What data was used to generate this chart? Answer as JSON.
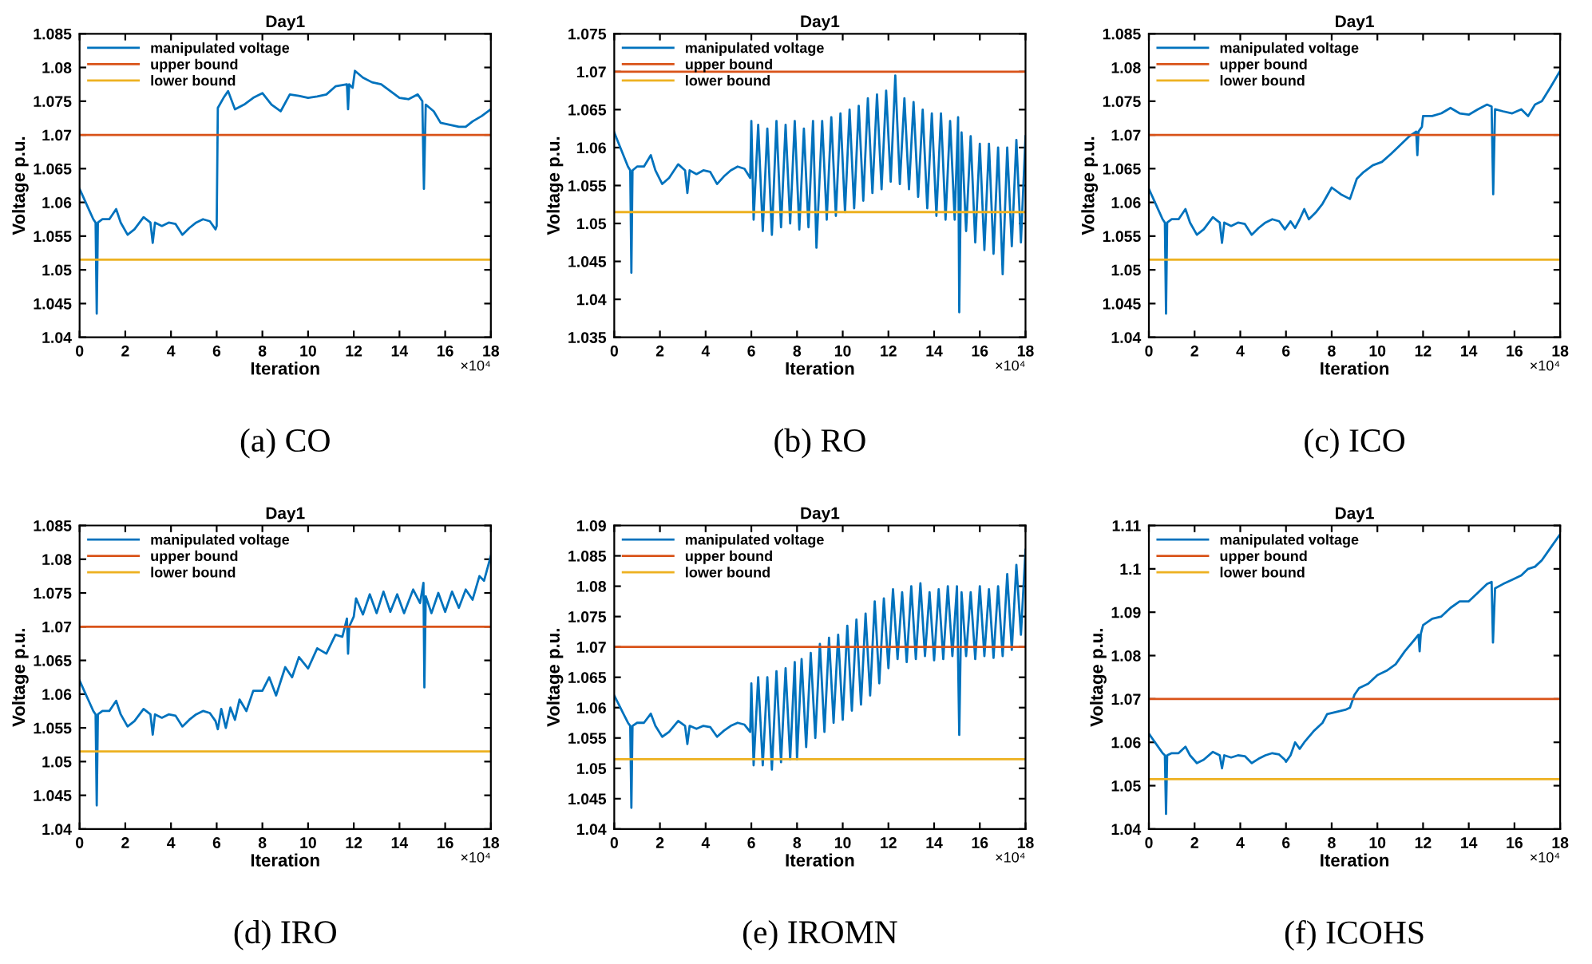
{
  "chart_data": [
    {
      "type": "line",
      "title": "Day1",
      "xlabel": "Iteration",
      "ylabel": "Voltage p.u.",
      "legend": "top left",
      "grid": false,
      "xlim": [
        0,
        18
      ],
      "xticks": [
        0,
        2,
        4,
        6,
        8,
        10,
        12,
        14,
        16,
        18
      ],
      "ylim": [
        1.04,
        1.085
      ],
      "yticks": [
        1.04,
        1.045,
        1.05,
        1.055,
        1.06,
        1.065,
        1.07,
        1.075,
        1.08,
        1.085
      ],
      "annotations": [
        "×10⁴",
        "(a) CO"
      ],
      "series": [
        {
          "name": "manipulated voltage",
          "color": "#0072bd",
          "x": [
            0,
            0.2,
            0.4,
            0.6,
            0.7,
            0.75,
            0.8,
            1.0,
            1.3,
            1.6,
            1.8,
            2.1,
            2.4,
            2.8,
            3.1,
            3.2,
            3.3,
            3.6,
            3.9,
            4.2,
            4.5,
            4.8,
            5.1,
            5.4,
            5.7,
            5.95,
            6.0,
            6.05,
            6.3,
            6.5,
            6.8,
            7.2,
            7.6,
            8.0,
            8.4,
            8.8,
            9.2,
            9.6,
            10.0,
            10.4,
            10.8,
            11.2,
            11.7,
            11.75,
            11.8,
            11.95,
            12.05,
            12.4,
            12.8,
            13.2,
            13.6,
            14.0,
            14.4,
            14.8,
            15.0,
            15.07,
            15.15,
            15.5,
            15.8,
            16.2,
            16.6,
            16.9,
            17.2,
            17.6,
            18.0
          ],
          "values": [
            1.062,
            1.0605,
            1.059,
            1.0575,
            1.057,
            1.0435,
            1.057,
            1.0575,
            1.0575,
            1.059,
            1.057,
            1.0552,
            1.056,
            1.0578,
            1.057,
            1.054,
            1.057,
            1.0565,
            1.057,
            1.0568,
            1.0552,
            1.0562,
            1.057,
            1.0575,
            1.0572,
            1.056,
            1.0565,
            1.074,
            1.0755,
            1.0765,
            1.0738,
            1.0745,
            1.0755,
            1.0762,
            1.0745,
            1.0735,
            1.076,
            1.0758,
            1.0755,
            1.0757,
            1.076,
            1.0772,
            1.0775,
            1.0738,
            1.0775,
            1.077,
            1.0795,
            1.0785,
            1.0778,
            1.0775,
            1.0765,
            1.0755,
            1.0753,
            1.076,
            1.075,
            1.062,
            1.0745,
            1.0735,
            1.0718,
            1.0715,
            1.0712,
            1.0712,
            1.072,
            1.0728,
            1.0738
          ]
        },
        {
          "name": "upper bound",
          "color": "#d95319",
          "x": [
            0,
            18
          ],
          "values": [
            1.07,
            1.07
          ]
        },
        {
          "name": "lower bound",
          "color": "#edb120",
          "x": [
            0,
            18
          ],
          "values": [
            1.0515,
            1.0515
          ]
        }
      ]
    },
    {
      "type": "line",
      "title": "Day1",
      "xlabel": "Iteration",
      "ylabel": "Voltage p.u.",
      "legend": "top left",
      "grid": false,
      "xlim": [
        0,
        18
      ],
      "xticks": [
        0,
        2,
        4,
        6,
        8,
        10,
        12,
        14,
        16,
        18
      ],
      "ylim": [
        1.035,
        1.075
      ],
      "yticks": [
        1.035,
        1.04,
        1.045,
        1.05,
        1.055,
        1.06,
        1.065,
        1.07,
        1.075
      ],
      "annotations": [
        "×10⁴",
        "(b) RO"
      ],
      "series": [
        {
          "name": "manipulated voltage",
          "color": "#0072bd",
          "x": [
            0,
            0.2,
            0.4,
            0.6,
            0.7,
            0.75,
            0.8,
            1.0,
            1.3,
            1.6,
            1.8,
            2.1,
            2.4,
            2.8,
            3.1,
            3.2,
            3.3,
            3.6,
            3.9,
            4.2,
            4.5,
            4.8,
            5.1,
            5.4,
            5.7,
            5.95,
            6.0,
            6.1,
            6.3,
            6.5,
            6.7,
            6.9,
            7.1,
            7.3,
            7.5,
            7.7,
            7.9,
            8.1,
            8.3,
            8.5,
            8.7,
            8.85,
            9.1,
            9.3,
            9.5,
            9.7,
            9.9,
            10.1,
            10.3,
            10.5,
            10.7,
            10.9,
            11.1,
            11.3,
            11.5,
            11.7,
            11.9,
            12.1,
            12.3,
            12.5,
            12.7,
            12.9,
            13.1,
            13.3,
            13.5,
            13.7,
            13.9,
            14.1,
            14.3,
            14.5,
            14.7,
            14.9,
            15.05,
            15.1,
            15.2,
            15.4,
            15.6,
            15.8,
            16.0,
            16.2,
            16.4,
            16.6,
            16.8,
            17.0,
            17.2,
            17.4,
            17.6,
            17.8,
            18.0
          ],
          "values": [
            1.062,
            1.0605,
            1.059,
            1.0575,
            1.057,
            1.0435,
            1.057,
            1.0575,
            1.0575,
            1.059,
            1.057,
            1.0552,
            1.056,
            1.0578,
            1.057,
            1.054,
            1.057,
            1.0565,
            1.057,
            1.0568,
            1.0552,
            1.0562,
            1.057,
            1.0575,
            1.0572,
            1.056,
            1.0635,
            1.0505,
            1.063,
            1.049,
            1.0625,
            1.0485,
            1.0635,
            1.0495,
            1.063,
            1.05,
            1.0635,
            1.0492,
            1.0625,
            1.0495,
            1.0635,
            1.0468,
            1.0635,
            1.0505,
            1.064,
            1.051,
            1.0645,
            1.0515,
            1.065,
            1.052,
            1.0655,
            1.053,
            1.0665,
            1.054,
            1.067,
            1.0545,
            1.0675,
            1.0555,
            1.0695,
            1.0552,
            1.0665,
            1.0545,
            1.066,
            1.0535,
            1.065,
            1.052,
            1.0645,
            1.051,
            1.0645,
            1.0505,
            1.0635,
            1.0505,
            1.064,
            1.0383,
            1.062,
            1.049,
            1.0615,
            1.0475,
            1.0605,
            1.0465,
            1.0605,
            1.046,
            1.06,
            1.0433,
            1.06,
            1.047,
            1.061,
            1.0475,
            1.0615
          ]
        },
        {
          "name": "upper bound",
          "color": "#d95319",
          "x": [
            0,
            18
          ],
          "values": [
            1.07,
            1.07
          ]
        },
        {
          "name": "lower bound",
          "color": "#edb120",
          "x": [
            0,
            18
          ],
          "values": [
            1.0515,
            1.0515
          ]
        }
      ]
    },
    {
      "type": "line",
      "title": "Day1",
      "xlabel": "Iteration",
      "ylabel": "Voltage p.u.",
      "legend": "top left",
      "grid": false,
      "xlim": [
        0,
        18
      ],
      "xticks": [
        0,
        2,
        4,
        6,
        8,
        10,
        12,
        14,
        16,
        18
      ],
      "ylim": [
        1.04,
        1.085
      ],
      "yticks": [
        1.04,
        1.045,
        1.05,
        1.055,
        1.06,
        1.065,
        1.07,
        1.075,
        1.08,
        1.085
      ],
      "annotations": [
        "×10⁴",
        "(c) ICO"
      ],
      "series": [
        {
          "name": "manipulated voltage",
          "color": "#0072bd",
          "x": [
            0,
            0.2,
            0.4,
            0.6,
            0.7,
            0.75,
            0.8,
            1.0,
            1.3,
            1.6,
            1.8,
            2.1,
            2.4,
            2.8,
            3.1,
            3.2,
            3.3,
            3.6,
            3.9,
            4.2,
            4.5,
            4.8,
            5.1,
            5.4,
            5.7,
            5.95,
            6.2,
            6.4,
            6.6,
            6.8,
            7.0,
            7.3,
            7.6,
            8.0,
            8.4,
            8.8,
            9.1,
            9.4,
            9.8,
            10.2,
            10.6,
            11.0,
            11.4,
            11.7,
            11.75,
            11.8,
            11.95,
            12.0,
            12.4,
            12.8,
            13.2,
            13.6,
            14.0,
            14.4,
            14.8,
            15.0,
            15.07,
            15.15,
            15.5,
            15.9,
            16.3,
            16.6,
            16.9,
            17.2,
            17.6,
            18.0
          ],
          "values": [
            1.062,
            1.0605,
            1.059,
            1.0575,
            1.057,
            1.0435,
            1.057,
            1.0575,
            1.0575,
            1.059,
            1.057,
            1.0552,
            1.056,
            1.0578,
            1.057,
            1.054,
            1.057,
            1.0565,
            1.057,
            1.0568,
            1.0552,
            1.0562,
            1.057,
            1.0575,
            1.0572,
            1.056,
            1.0572,
            1.0562,
            1.0575,
            1.059,
            1.0575,
            1.0585,
            1.0598,
            1.0622,
            1.0612,
            1.0605,
            1.0635,
            1.0645,
            1.0655,
            1.066,
            1.0672,
            1.0685,
            1.0698,
            1.0705,
            1.067,
            1.0705,
            1.0712,
            1.0728,
            1.0728,
            1.0732,
            1.074,
            1.0732,
            1.073,
            1.0738,
            1.0745,
            1.0742,
            1.0612,
            1.0738,
            1.0735,
            1.0732,
            1.0738,
            1.0728,
            1.0745,
            1.075,
            1.0772,
            1.0795
          ]
        },
        {
          "name": "upper bound",
          "color": "#d95319",
          "x": [
            0,
            18
          ],
          "values": [
            1.07,
            1.07
          ]
        },
        {
          "name": "lower bound",
          "color": "#edb120",
          "x": [
            0,
            18
          ],
          "values": [
            1.0515,
            1.0515
          ]
        }
      ]
    },
    {
      "type": "line",
      "title": "Day1",
      "xlabel": "Iteration",
      "ylabel": "Voltage p.u.",
      "legend": "top left",
      "grid": false,
      "xlim": [
        0,
        18
      ],
      "xticks": [
        0,
        2,
        4,
        6,
        8,
        10,
        12,
        14,
        16,
        18
      ],
      "ylim": [
        1.04,
        1.085
      ],
      "yticks": [
        1.04,
        1.045,
        1.05,
        1.055,
        1.06,
        1.065,
        1.07,
        1.075,
        1.08,
        1.085
      ],
      "annotations": [
        "×10⁴",
        "(d) IRO"
      ],
      "series": [
        {
          "name": "manipulated voltage",
          "color": "#0072bd",
          "x": [
            0,
            0.2,
            0.4,
            0.6,
            0.7,
            0.75,
            0.8,
            1.0,
            1.3,
            1.6,
            1.8,
            2.1,
            2.4,
            2.8,
            3.1,
            3.2,
            3.3,
            3.6,
            3.9,
            4.2,
            4.5,
            4.8,
            5.1,
            5.4,
            5.7,
            5.95,
            6.05,
            6.2,
            6.4,
            6.6,
            6.8,
            7.0,
            7.3,
            7.6,
            8.0,
            8.3,
            8.6,
            9.0,
            9.3,
            9.6,
            10.0,
            10.4,
            10.8,
            11.2,
            11.5,
            11.7,
            11.75,
            11.8,
            12.0,
            12.1,
            12.4,
            12.7,
            13.0,
            13.3,
            13.6,
            13.9,
            14.2,
            14.6,
            14.9,
            15.05,
            15.09,
            15.15,
            15.4,
            15.7,
            16.0,
            16.3,
            16.6,
            16.9,
            17.2,
            17.5,
            17.7,
            18.0
          ],
          "values": [
            1.062,
            1.0605,
            1.059,
            1.0575,
            1.057,
            1.0435,
            1.057,
            1.0575,
            1.0575,
            1.059,
            1.057,
            1.0552,
            1.056,
            1.0578,
            1.057,
            1.054,
            1.057,
            1.0565,
            1.057,
            1.0568,
            1.0552,
            1.0562,
            1.057,
            1.0575,
            1.0572,
            1.056,
            1.0548,
            1.0578,
            1.055,
            1.058,
            1.0562,
            1.0592,
            1.0575,
            1.0605,
            1.0605,
            1.0625,
            1.0598,
            1.064,
            1.0625,
            1.0655,
            1.0638,
            1.0668,
            1.066,
            1.0688,
            1.0685,
            1.0712,
            1.066,
            1.07,
            1.0715,
            1.0742,
            1.0718,
            1.0748,
            1.072,
            1.0752,
            1.0722,
            1.0748,
            1.072,
            1.0755,
            1.0735,
            1.0765,
            1.061,
            1.0745,
            1.072,
            1.075,
            1.0722,
            1.0752,
            1.0728,
            1.0755,
            1.074,
            1.0775,
            1.0768,
            1.0805
          ]
        },
        {
          "name": "upper bound",
          "color": "#d95319",
          "x": [
            0,
            18
          ],
          "values": [
            1.07,
            1.07
          ]
        },
        {
          "name": "lower bound",
          "color": "#edb120",
          "x": [
            0,
            18
          ],
          "values": [
            1.0515,
            1.0515
          ]
        }
      ]
    },
    {
      "type": "line",
      "title": "Day1",
      "xlabel": "Iteration",
      "ylabel": "Voltage p.u.",
      "legend": "top left",
      "grid": false,
      "xlim": [
        0,
        18
      ],
      "xticks": [
        0,
        2,
        4,
        6,
        8,
        10,
        12,
        14,
        16,
        18
      ],
      "ylim": [
        1.04,
        1.09
      ],
      "yticks": [
        1.04,
        1.045,
        1.05,
        1.055,
        1.06,
        1.065,
        1.07,
        1.075,
        1.08,
        1.085,
        1.09
      ],
      "annotations": [
        "×10⁴",
        "(e) IROMN"
      ],
      "series": [
        {
          "name": "manipulated voltage",
          "color": "#0072bd",
          "x": [
            0,
            0.2,
            0.4,
            0.6,
            0.7,
            0.75,
            0.8,
            1.0,
            1.3,
            1.6,
            1.8,
            2.1,
            2.4,
            2.8,
            3.1,
            3.2,
            3.3,
            3.6,
            3.9,
            4.2,
            4.5,
            4.8,
            5.1,
            5.4,
            5.7,
            5.95,
            6.0,
            6.1,
            6.3,
            6.5,
            6.7,
            6.9,
            7.1,
            7.3,
            7.5,
            7.7,
            7.9,
            8.0,
            8.2,
            8.4,
            8.6,
            8.8,
            9.0,
            9.2,
            9.4,
            9.6,
            9.8,
            10.0,
            10.2,
            10.4,
            10.6,
            10.8,
            11.0,
            11.2,
            11.4,
            11.6,
            11.8,
            12.0,
            12.2,
            12.4,
            12.6,
            12.8,
            13.0,
            13.2,
            13.4,
            13.6,
            13.8,
            14.0,
            14.2,
            14.4,
            14.6,
            14.8,
            15.0,
            15.1,
            15.2,
            15.4,
            15.6,
            15.8,
            16.0,
            16.2,
            16.4,
            16.6,
            16.8,
            17.0,
            17.2,
            17.4,
            17.6,
            17.8,
            18.0
          ],
          "values": [
            1.062,
            1.0605,
            1.059,
            1.0575,
            1.057,
            1.0435,
            1.057,
            1.0575,
            1.0575,
            1.059,
            1.057,
            1.0552,
            1.056,
            1.0578,
            1.057,
            1.054,
            1.057,
            1.0565,
            1.057,
            1.0568,
            1.0552,
            1.0562,
            1.057,
            1.0575,
            1.0572,
            1.056,
            1.064,
            1.0505,
            1.065,
            1.0505,
            1.065,
            1.0498,
            1.066,
            1.051,
            1.0665,
            1.0515,
            1.0675,
            1.0515,
            1.068,
            1.0535,
            1.069,
            1.055,
            1.0705,
            1.056,
            1.0715,
            1.0575,
            1.072,
            1.058,
            1.0735,
            1.0595,
            1.0745,
            1.0605,
            1.0755,
            1.062,
            1.0775,
            1.064,
            1.078,
            1.0665,
            1.0795,
            1.068,
            1.079,
            1.0675,
            1.08,
            1.068,
            1.0805,
            1.0685,
            1.079,
            1.0678,
            1.0795,
            1.068,
            1.08,
            1.0685,
            1.08,
            1.0555,
            1.079,
            1.0685,
            1.079,
            1.068,
            1.08,
            1.0685,
            1.0795,
            1.0682,
            1.08,
            1.0685,
            1.082,
            1.0695,
            1.0835,
            1.072,
            1.086
          ]
        },
        {
          "name": "upper bound",
          "color": "#d95319",
          "x": [
            0,
            18
          ],
          "values": [
            1.07,
            1.07
          ]
        },
        {
          "name": "lower bound",
          "color": "#edb120",
          "x": [
            0,
            18
          ],
          "values": [
            1.0515,
            1.0515
          ]
        }
      ]
    },
    {
      "type": "line",
      "title": "Day1",
      "xlabel": "Iteration",
      "ylabel": "Voltage p.u.",
      "legend": "top left",
      "grid": false,
      "xlim": [
        0,
        18
      ],
      "xticks": [
        0,
        2,
        4,
        6,
        8,
        10,
        12,
        14,
        16,
        18
      ],
      "ylim": [
        1.04,
        1.11
      ],
      "yticks": [
        1.04,
        1.05,
        1.06,
        1.07,
        1.08,
        1.09,
        1.1,
        1.11
      ],
      "annotations": [
        "×10⁴",
        "(f) ICOHS"
      ],
      "series": [
        {
          "name": "manipulated voltage",
          "color": "#0072bd",
          "x": [
            0,
            0.2,
            0.4,
            0.6,
            0.7,
            0.75,
            0.8,
            1.0,
            1.3,
            1.6,
            1.8,
            2.1,
            2.4,
            2.8,
            3.1,
            3.2,
            3.3,
            3.6,
            3.9,
            4.2,
            4.5,
            4.8,
            5.1,
            5.4,
            5.7,
            5.95,
            6.0,
            6.2,
            6.4,
            6.6,
            6.8,
            7.2,
            7.6,
            7.8,
            8.2,
            8.6,
            8.8,
            9.0,
            9.2,
            9.6,
            10.0,
            10.4,
            10.8,
            11.2,
            11.6,
            11.8,
            11.85,
            11.9,
            12.0,
            12.4,
            12.8,
            13.2,
            13.6,
            14.0,
            14.4,
            14.8,
            15.0,
            15.06,
            15.15,
            15.5,
            15.9,
            16.3,
            16.6,
            16.9,
            17.2,
            17.6,
            18.0
          ],
          "values": [
            1.062,
            1.0605,
            1.059,
            1.0575,
            1.057,
            1.0435,
            1.057,
            1.0575,
            1.0575,
            1.059,
            1.057,
            1.0552,
            1.056,
            1.0578,
            1.057,
            1.054,
            1.057,
            1.0565,
            1.057,
            1.0568,
            1.0552,
            1.0562,
            1.057,
            1.0575,
            1.0572,
            1.056,
            1.0555,
            1.057,
            1.06,
            1.0585,
            1.06,
            1.0625,
            1.0645,
            1.0665,
            1.067,
            1.0675,
            1.068,
            1.071,
            1.0725,
            1.0735,
            1.0755,
            1.0765,
            1.078,
            1.081,
            1.0835,
            1.0848,
            1.081,
            1.085,
            1.087,
            1.0885,
            1.089,
            1.091,
            1.0925,
            1.0925,
            1.0945,
            1.0965,
            1.097,
            1.083,
            1.0955,
            1.0965,
            1.0975,
            1.0985,
            1.1,
            1.1005,
            1.102,
            1.105,
            1.108
          ]
        },
        {
          "name": "upper bound",
          "color": "#d95319",
          "x": [
            0,
            18
          ],
          "values": [
            1.07,
            1.07
          ]
        },
        {
          "name": "lower bound",
          "color": "#edb120",
          "x": [
            0,
            18
          ],
          "values": [
            1.0515,
            1.0515
          ]
        }
      ]
    }
  ]
}
